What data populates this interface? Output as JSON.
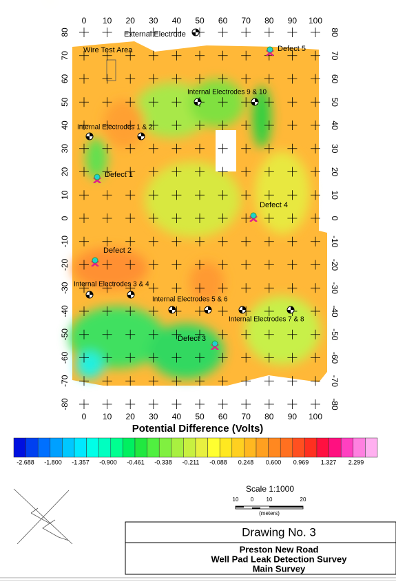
{
  "map": {
    "xticks": [
      0,
      10,
      20,
      30,
      40,
      50,
      60,
      70,
      80,
      90,
      100
    ],
    "yticks": [
      80,
      70,
      60,
      50,
      40,
      30,
      20,
      10,
      0,
      -10,
      -20,
      -30,
      -40,
      -50,
      -60,
      -70,
      -80
    ]
  },
  "annotations": {
    "external": "External Electrode",
    "wire": "Wire Test Area",
    "defect5": "Defect 5",
    "int910": "Internal Electrodes 9 & 10",
    "int12": "Internal Electrodes 1 & 2",
    "defect1": "Defect 1",
    "defect4": "Defect 4",
    "defect2": "Defect 2",
    "int34": "Internal Electrodes 3 & 4",
    "int56": "Internal Electrodes 5 & 6",
    "int78": "Internal Electrodes 7 & 8",
    "defect3": "Defect 3"
  },
  "legend": {
    "title": "Potential Difference (Volts)",
    "labels": [
      -2.688,
      {
        "value": -1.8,
        "label": "-1.800"
      },
      -1.357,
      {
        "value": -0.9,
        "label": "-0.900"
      },
      -0.461,
      -0.338,
      -0.211,
      -0.088,
      0.248,
      {
        "value": 0.6,
        "label": "0.600"
      },
      0.969,
      1.327,
      2.299
    ],
    "colors": [
      "#0010e0",
      "#0040f0",
      "#0070ff",
      "#00a0ff",
      "#00c8ff",
      "#00e8ff",
      "#00ffe8",
      "#00ffc0",
      "#00ff90",
      "#00f060",
      "#20e840",
      "#50f040",
      "#80f040",
      "#a8f040",
      "#c8f040",
      "#e8f040",
      "#ffff30",
      "#ffe820",
      "#ffd020",
      "#ffb820",
      "#ffa020",
      "#ff8820",
      "#ff7020",
      "#ff5020",
      "#ff3020",
      "#ff1040",
      "#ff1080",
      "#ff40c0",
      "#ff80e0",
      "#ffb0f0"
    ]
  },
  "scale": {
    "title": "Scale 1:1000",
    "labels": [
      10,
      0,
      10,
      20
    ],
    "unit": "(meters)"
  },
  "titleblock": {
    "drawing": "Drawing No. 3",
    "lines": [
      "Preston New Road",
      "Well Pad Leak Detection Survey",
      "Main Survey"
    ]
  }
}
